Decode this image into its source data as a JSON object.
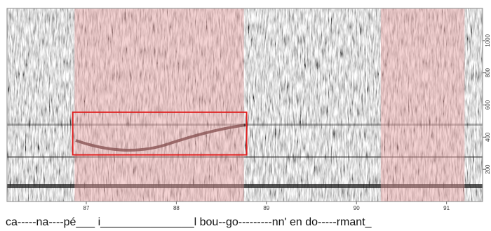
{
  "chart_data": {
    "type": "spectrogram",
    "xlim": [
      86.12,
      91.4
    ],
    "xticks": [
      87,
      88,
      89,
      90,
      91
    ],
    "ylim": [
      0,
      1200
    ],
    "yticks": [
      200,
      400,
      600,
      800,
      1000
    ],
    "highlights": [
      {
        "x": [
          86.87,
          88.75
        ]
      },
      {
        "x": [
          90.27,
          91.2
        ]
      }
    ],
    "highlight_color": "#e8a0a0",
    "box": {
      "x": [
        86.85,
        88.78
      ],
      "y": [
        290,
        555
      ]
    },
    "box_color": "#e02020",
    "caption": "ca-----na----pé___ i_______________l bou--go---------nn' en  do-----rmant_"
  }
}
